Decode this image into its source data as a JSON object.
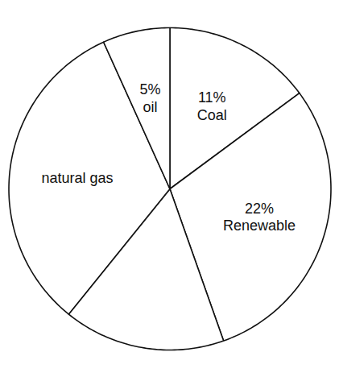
{
  "chart_data": {
    "type": "pie",
    "categories": [
      "Coal",
      "Renewable",
      null,
      "natural gas",
      "oil"
    ],
    "values": [
      11,
      22,
      12,
      24,
      5
    ],
    "value_labels": [
      "11%",
      "22%",
      null,
      null,
      "5%"
    ],
    "data_labels": true,
    "color": "#ffffff"
  }
}
